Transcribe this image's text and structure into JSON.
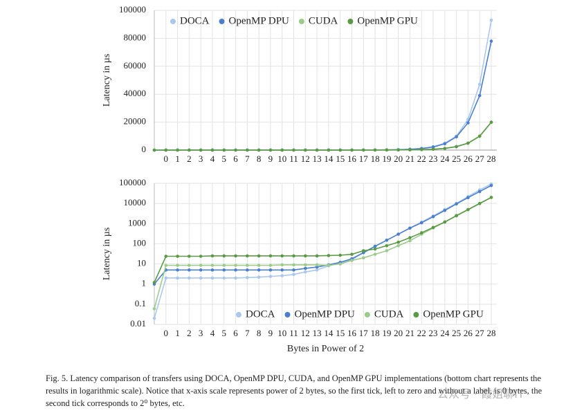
{
  "chart_data": [
    {
      "type": "line",
      "y_label": "Latency in µs",
      "log": false,
      "grid": true,
      "legend": "top",
      "categories": [
        null,
        "0",
        "1",
        "2",
        "3",
        "4",
        "5",
        "6",
        "7",
        "8",
        "9",
        "10",
        "11",
        "12",
        "13",
        "14",
        "15",
        "16",
        "17",
        "18",
        "19",
        "20",
        "21",
        "22",
        "23",
        "24",
        "25",
        "26",
        "27",
        "28"
      ],
      "ylim": [
        0,
        100000
      ],
      "yticks": [
        0,
        20000,
        40000,
        60000,
        80000,
        100000
      ],
      "series": [
        {
          "name": "DOCA",
          "color": "#a9c8ec",
          "values": [
            0.02,
            2,
            2,
            2,
            2,
            2,
            2,
            2,
            2.1,
            2.2,
            2.4,
            2.6,
            3,
            4,
            5,
            8,
            11,
            16,
            38,
            75,
            150,
            300,
            600,
            1200,
            2400,
            5000,
            10000,
            22000,
            47000,
            93000
          ]
        },
        {
          "name": "OpenMP DPU",
          "color": "#4a7fcf",
          "values": [
            1,
            5,
            5,
            5,
            5,
            5,
            5,
            5,
            5,
            5,
            5,
            5,
            5,
            6,
            7,
            9,
            12,
            18,
            36,
            75,
            150,
            300,
            600,
            1100,
            2200,
            4500,
            9500,
            19500,
            39000,
            78000
          ]
        },
        {
          "name": "CUDA",
          "color": "#9ccc8c",
          "values": [
            0.06,
            8.5,
            8.5,
            8.5,
            8.5,
            8.5,
            8.5,
            8.5,
            8.5,
            8.5,
            8.5,
            9,
            9,
            9,
            9,
            8.5,
            10,
            15,
            20,
            30,
            45,
            80,
            140,
            300,
            600,
            1200,
            2400,
            4800,
            9800,
            19800
          ]
        },
        {
          "name": "OpenMP GPU",
          "color": "#5a9a45",
          "values": [
            1.2,
            24,
            24,
            24,
            24,
            25,
            25,
            25,
            25,
            25,
            25,
            25,
            25,
            25,
            25,
            26,
            27,
            30,
            45,
            55,
            80,
            120,
            200,
            350,
            650,
            1200,
            2500,
            5000,
            10000,
            20000
          ]
        }
      ]
    },
    {
      "type": "line",
      "y_label": "Latency in µs",
      "x_label": "Bytes in Power of 2",
      "log": true,
      "grid": true,
      "legend": "bottom",
      "categories": [
        null,
        "0",
        "1",
        "2",
        "3",
        "4",
        "5",
        "6",
        "7",
        "8",
        "9",
        "10",
        "11",
        "12",
        "13",
        "14",
        "15",
        "16",
        "17",
        "18",
        "19",
        "20",
        "21",
        "22",
        "23",
        "24",
        "25",
        "26",
        "27",
        "28"
      ],
      "ylim": [
        0.01,
        100000
      ],
      "yticks": [
        0.01,
        0.1,
        1,
        10,
        100,
        1000,
        10000,
        100000
      ],
      "series": [
        {
          "name": "DOCA",
          "color": "#a9c8ec",
          "values": [
            0.02,
            2,
            2,
            2,
            2,
            2,
            2,
            2,
            2.1,
            2.2,
            2.4,
            2.6,
            3,
            4,
            5,
            8,
            11,
            16,
            38,
            75,
            150,
            300,
            600,
            1200,
            2400,
            5000,
            10000,
            22000,
            47000,
            93000
          ]
        },
        {
          "name": "OpenMP DPU",
          "color": "#4a7fcf",
          "values": [
            1,
            5,
            5,
            5,
            5,
            5,
            5,
            5,
            5,
            5,
            5,
            5,
            5,
            6,
            7,
            9,
            12,
            18,
            36,
            75,
            150,
            300,
            600,
            1100,
            2200,
            4500,
            9500,
            19500,
            39000,
            78000
          ]
        },
        {
          "name": "CUDA",
          "color": "#9ccc8c",
          "values": [
            0.06,
            8.5,
            8.5,
            8.5,
            8.5,
            8.5,
            8.5,
            8.5,
            8.5,
            8.5,
            8.5,
            9,
            9,
            9,
            9,
            8.5,
            10,
            15,
            20,
            30,
            45,
            80,
            140,
            300,
            600,
            1200,
            2400,
            4800,
            9800,
            19800
          ]
        },
        {
          "name": "OpenMP GPU",
          "color": "#5a9a45",
          "values": [
            1.2,
            24,
            24,
            24,
            24,
            25,
            25,
            25,
            25,
            25,
            25,
            25,
            25,
            25,
            25,
            26,
            27,
            30,
            45,
            55,
            80,
            120,
            200,
            350,
            650,
            1200,
            2500,
            5000,
            10000,
            20000
          ]
        }
      ]
    }
  ],
  "caption": "Fig. 5. Latency comparison of transfers using DOCA, OpenMP DPU, CUDA, and OpenMP GPU implementations (bottom chart represents the results in logarithmic scale). Notice that x-axis scale represents power of 2 bytes, so the first tick, left to zero and without a label, is 0 bytes, the second tick corresponds to 2⁰ bytes, etc.",
  "watermark": "公众号 · 霞姐聊IT"
}
